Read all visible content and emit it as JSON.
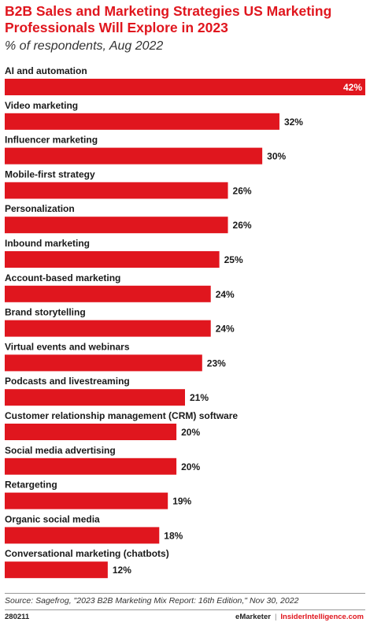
{
  "header": {
    "title": "B2B Sales and Marketing Strategies US Marketing Professionals Will Explore in 2023",
    "subtitle": "% of respondents, Aug 2022"
  },
  "chart_data": {
    "type": "bar",
    "orientation": "horizontal",
    "categories": [
      "AI and automation",
      "Video marketing",
      "Influencer marketing",
      "Mobile-first strategy",
      "Personalization",
      "Inbound marketing",
      "Account-based marketing",
      "Brand storytelling",
      "Virtual events and webinars",
      "Podcasts and livestreaming",
      "Customer relationship management (CRM) software",
      "Social media advertising",
      "Retargeting",
      "Organic social media",
      "Conversational marketing (chatbots)"
    ],
    "values": [
      42,
      32,
      30,
      26,
      26,
      25,
      24,
      24,
      23,
      21,
      20,
      20,
      19,
      18,
      12
    ],
    "value_suffix": "%",
    "xlim": [
      0,
      42
    ],
    "grid": false,
    "bar_color": "#e0161e"
  },
  "footer": {
    "source": "Source: Sagefrog, \"2023 B2B Marketing Mix Report: 16th Edition,\" Nov 30, 2022",
    "chart_id": "280211",
    "brand": "eMarketer",
    "separator": "|",
    "site": "InsiderIntelligence.com"
  }
}
